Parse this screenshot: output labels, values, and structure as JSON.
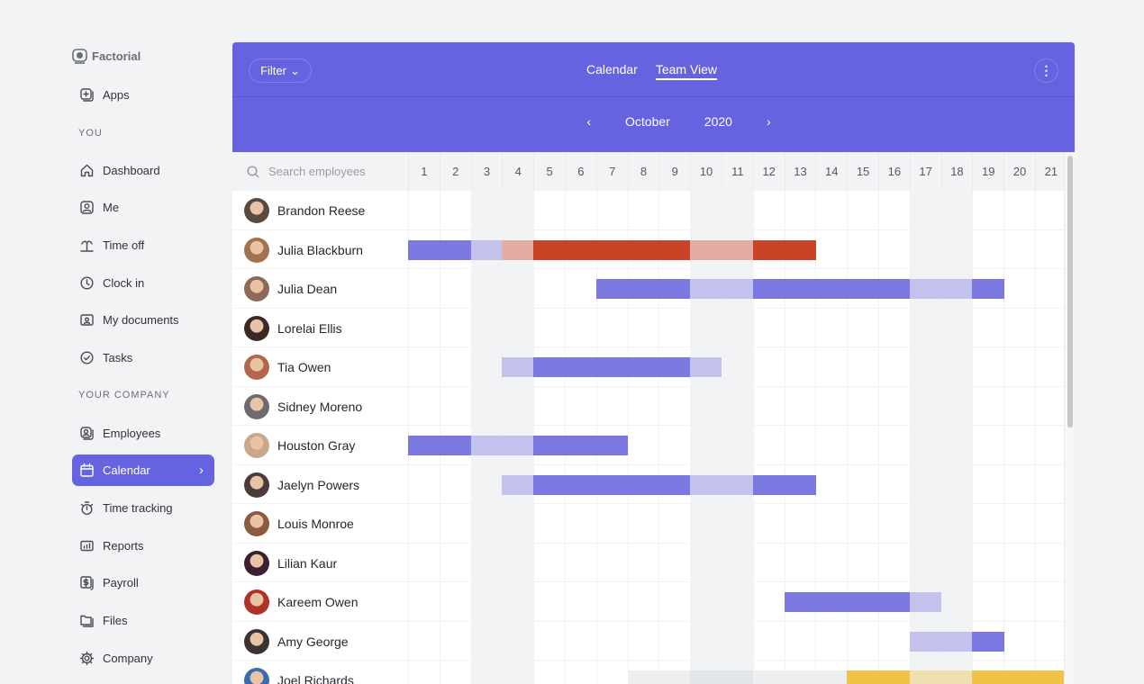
{
  "brand": "Factorial",
  "sidebar": {
    "apps": "Apps",
    "you_label": "YOU",
    "you_items": [
      {
        "label": "Dashboard",
        "icon": "home-icon"
      },
      {
        "label": "Me",
        "icon": "user-icon"
      },
      {
        "label": "Time off",
        "icon": "palm-tree-icon"
      },
      {
        "label": "Clock in",
        "icon": "clock-icon"
      },
      {
        "label": "My documents",
        "icon": "document-icon"
      },
      {
        "label": "Tasks",
        "icon": "check-circle-icon"
      }
    ],
    "company_label": "YOUR COMPANY",
    "company_items": [
      {
        "label": "Employees",
        "icon": "employees-icon"
      },
      {
        "label": "Calendar",
        "icon": "calendar-icon",
        "active": true
      },
      {
        "label": "Time tracking",
        "icon": "stopwatch-icon"
      },
      {
        "label": "Reports",
        "icon": "chart-icon"
      },
      {
        "label": "Payroll",
        "icon": "dollar-icon"
      },
      {
        "label": "Files",
        "icon": "folder-icon"
      },
      {
        "label": "Company",
        "icon": "gear-icon"
      }
    ]
  },
  "header": {
    "filter": "Filter",
    "tabs": [
      {
        "label": "Calendar"
      },
      {
        "label": "Team View",
        "active": true
      }
    ],
    "month": "October",
    "year": "2020"
  },
  "search_placeholder": "Search employees",
  "days": [
    1,
    2,
    3,
    4,
    5,
    6,
    7,
    8,
    9,
    10,
    11,
    12,
    13,
    14,
    15,
    16,
    17,
    18,
    19,
    20,
    21
  ],
  "weekend_days": [
    3,
    4,
    10,
    11,
    17,
    18
  ],
  "colors": {
    "accent": "#6563e0",
    "vacation": "#7b78e0",
    "vacation_light": "#c3c2ec",
    "sick": "#c94427",
    "sick_light": "#e3aca3",
    "pending": "#edeef0",
    "pending_light": "#e3e6e9",
    "other": "#f0c347",
    "other_light": "#eee0b0"
  },
  "employees": [
    {
      "name": "Brandon Reese",
      "avatar": "#5a4a3e",
      "bars": []
    },
    {
      "name": "Julia Blackburn",
      "avatar": "#a0724f",
      "bars": [
        {
          "start": 1,
          "end": 3,
          "type": "vacation"
        },
        {
          "start": 4,
          "end": 13,
          "type": "sick"
        }
      ]
    },
    {
      "name": "Julia Dean",
      "avatar": "#8c6a55",
      "bars": [
        {
          "start": 7,
          "end": 19,
          "type": "vacation"
        }
      ]
    },
    {
      "name": "Lorelai Ellis",
      "avatar": "#3a2a26",
      "bars": []
    },
    {
      "name": "Tia Owen",
      "avatar": "#b5654c",
      "bars": [
        {
          "start": 4,
          "end": 10,
          "type": "vacation"
        }
      ]
    },
    {
      "name": "Sidney Moreno",
      "avatar": "#6d6a70",
      "bars": []
    },
    {
      "name": "Houston Gray",
      "avatar": "#c9a78a",
      "bars": [
        {
          "start": 1,
          "end": 7,
          "type": "vacation"
        }
      ]
    },
    {
      "name": "Jaelyn Powers",
      "avatar": "#4b3b38",
      "bars": [
        {
          "start": 4,
          "end": 13,
          "type": "vacation"
        }
      ]
    },
    {
      "name": "Louis Monroe",
      "avatar": "#8a5b3e",
      "bars": []
    },
    {
      "name": "Lilian Kaur",
      "avatar": "#3d2030",
      "bars": []
    },
    {
      "name": "Kareem Owen",
      "avatar": "#b0302a",
      "bars": [
        {
          "start": 13,
          "end": 17,
          "type": "vacation"
        }
      ]
    },
    {
      "name": "Amy George",
      "avatar": "#3b3332",
      "bars": [
        {
          "start": 17,
          "end": 19,
          "type": "vacation"
        }
      ]
    },
    {
      "name": "Joel Richards",
      "avatar": "#3c6ab0",
      "bars": [
        {
          "start": 8,
          "end": 14,
          "type": "pending"
        },
        {
          "start": 15,
          "end": 21,
          "type": "other"
        }
      ]
    }
  ]
}
